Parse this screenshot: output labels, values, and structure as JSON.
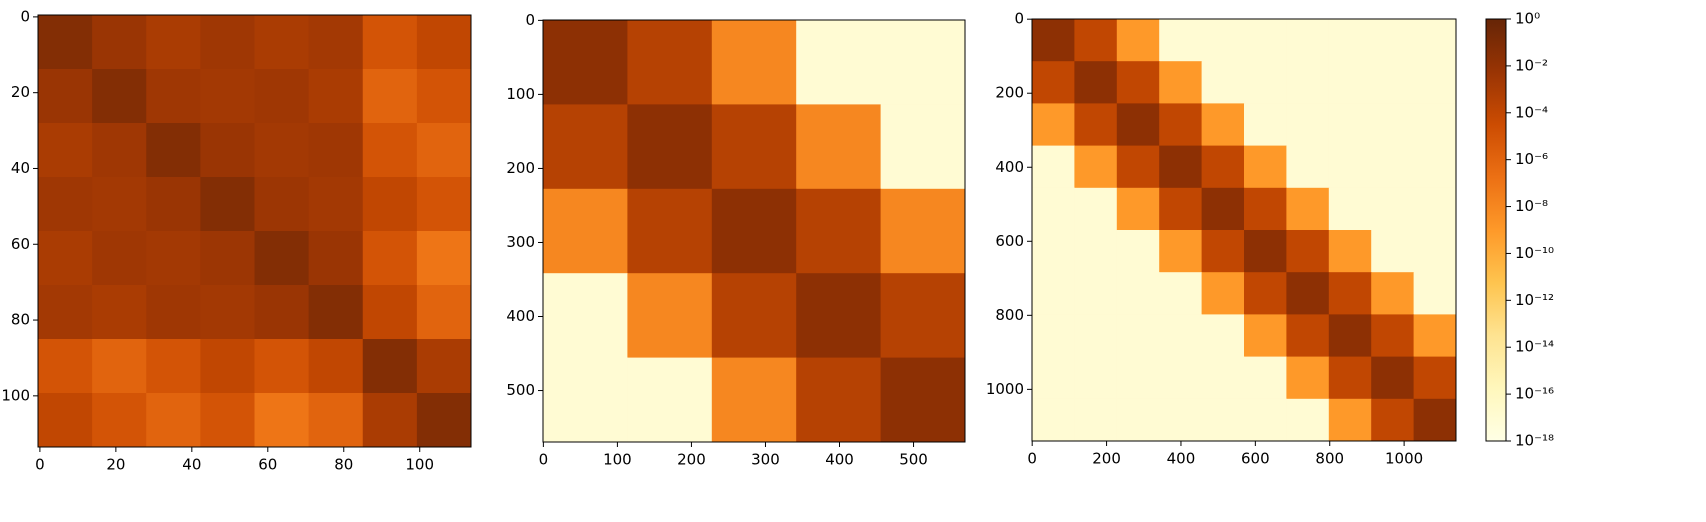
{
  "chart_data": [
    {
      "type": "heatmap",
      "xlim": [
        -0.5,
        113.5
      ],
      "ylim": [
        113.5,
        -0.5
      ],
      "xticks": [
        0,
        20,
        40,
        60,
        80,
        100
      ],
      "yticks": [
        0,
        20,
        40,
        60,
        80,
        100
      ],
      "z": [
        [
          0.05,
          0.005,
          0.001,
          0.003,
          0.001,
          0.002,
          1e-05,
          0.0001
        ],
        [
          0.005,
          0.05,
          0.003,
          0.002,
          0.003,
          0.001,
          1e-06,
          1e-05
        ],
        [
          0.001,
          0.003,
          0.05,
          0.005,
          0.002,
          0.003,
          1e-05,
          1e-06
        ],
        [
          0.003,
          0.002,
          0.005,
          0.05,
          0.004,
          0.002,
          0.0001,
          1e-05
        ],
        [
          0.001,
          0.003,
          0.002,
          0.004,
          0.05,
          0.005,
          1e-05,
          1e-07
        ],
        [
          0.002,
          0.001,
          0.003,
          0.002,
          0.005,
          0.05,
          0.0001,
          1e-06
        ],
        [
          1e-05,
          1e-06,
          1e-05,
          0.0001,
          1e-05,
          0.0001,
          0.05,
          0.001
        ],
        [
          0.0001,
          1e-05,
          1e-06,
          1e-05,
          1e-07,
          1e-06,
          0.001,
          0.05
        ]
      ]
    },
    {
      "type": "heatmap",
      "xlim": [
        -0.5,
        569.5
      ],
      "ylim": [
        569.5,
        -0.5
      ],
      "xticks": [
        0,
        100,
        200,
        300,
        400,
        500
      ],
      "yticks": [
        0,
        100,
        200,
        300,
        400,
        500
      ],
      "z": [
        [
          0.02,
          0.0003,
          1e-08,
          1e-17,
          1e-17
        ],
        [
          0.0003,
          0.02,
          0.0003,
          1e-08,
          1e-17
        ],
        [
          1e-08,
          0.0003,
          0.02,
          0.0003,
          1e-08
        ],
        [
          1e-17,
          1e-08,
          0.0003,
          0.02,
          0.0003
        ],
        [
          1e-17,
          1e-17,
          1e-08,
          0.0003,
          0.02
        ]
      ]
    },
    {
      "type": "heatmap",
      "xlim": [
        -0.5,
        1139.5
      ],
      "ylim": [
        1139.5,
        -0.5
      ],
      "xticks": [
        0,
        200,
        400,
        600,
        800,
        1000
      ],
      "yticks": [
        0,
        200,
        400,
        600,
        800,
        1000
      ],
      "z": [
        [
          0.02,
          0.0001,
          1e-09,
          1e-17,
          1e-17,
          1e-17,
          1e-17,
          1e-17,
          1e-17,
          1e-17
        ],
        [
          0.0001,
          0.02,
          0.0001,
          1e-09,
          1e-17,
          1e-17,
          1e-17,
          1e-17,
          1e-17,
          1e-17
        ],
        [
          1e-09,
          0.0001,
          0.02,
          0.0001,
          1e-09,
          1e-17,
          1e-17,
          1e-17,
          1e-17,
          1e-17
        ],
        [
          1e-17,
          1e-09,
          0.0001,
          0.02,
          0.0001,
          1e-09,
          1e-17,
          1e-17,
          1e-17,
          1e-17
        ],
        [
          1e-17,
          1e-17,
          1e-09,
          0.0001,
          0.02,
          0.0001,
          1e-09,
          1e-17,
          1e-17,
          1e-17
        ],
        [
          1e-17,
          1e-17,
          1e-17,
          1e-09,
          0.0001,
          0.02,
          0.0001,
          1e-09,
          1e-17,
          1e-17
        ],
        [
          1e-17,
          1e-17,
          1e-17,
          1e-17,
          1e-09,
          0.0001,
          0.02,
          0.0001,
          1e-09,
          1e-17
        ],
        [
          1e-17,
          1e-17,
          1e-17,
          1e-17,
          1e-17,
          1e-09,
          0.0001,
          0.02,
          0.0001,
          1e-09
        ],
        [
          1e-17,
          1e-17,
          1e-17,
          1e-17,
          1e-17,
          1e-17,
          1e-09,
          0.0001,
          0.02,
          0.0001
        ],
        [
          1e-17,
          1e-17,
          1e-17,
          1e-17,
          1e-17,
          1e-17,
          1e-17,
          1e-09,
          0.0001,
          0.02
        ]
      ]
    }
  ],
  "colorbar": {
    "scale": "log",
    "cmap": "YlOrBr",
    "ylim": [
      1e-18,
      1
    ],
    "yticks": [
      {
        "value": 1,
        "label": "10⁰"
      },
      {
        "value": 0.01,
        "label": "10⁻²"
      },
      {
        "value": 0.0001,
        "label": "10⁻⁴"
      },
      {
        "value": 1e-06,
        "label": "10⁻⁶"
      },
      {
        "value": 1e-08,
        "label": "10⁻⁸"
      },
      {
        "value": 1e-10,
        "label": "10⁻¹⁰"
      },
      {
        "value": 1e-12,
        "label": "10⁻¹²"
      },
      {
        "value": 1e-14,
        "label": "10⁻¹⁴"
      },
      {
        "value": 1e-16,
        "label": "10⁻¹⁶"
      },
      {
        "value": 1e-18,
        "label": "10⁻¹⁸"
      }
    ]
  }
}
